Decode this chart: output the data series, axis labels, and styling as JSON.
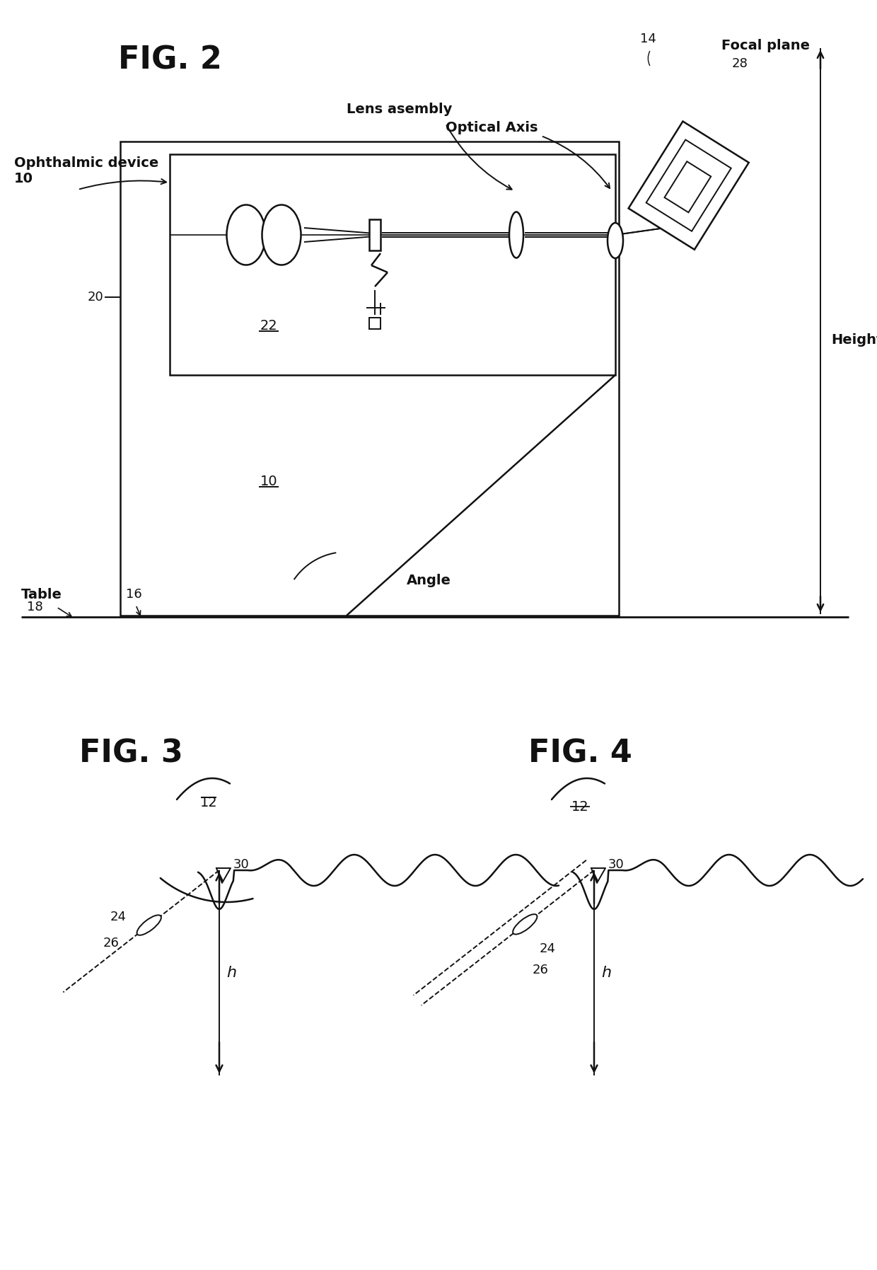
{
  "bg_color": "#ffffff",
  "line_color": "#111111",
  "fig2_title": "FIG. 2",
  "fig3_title": "FIG. 3",
  "fig4_title": "FIG. 4",
  "font_size_title": 32,
  "font_size_label": 14,
  "font_size_ref": 13
}
